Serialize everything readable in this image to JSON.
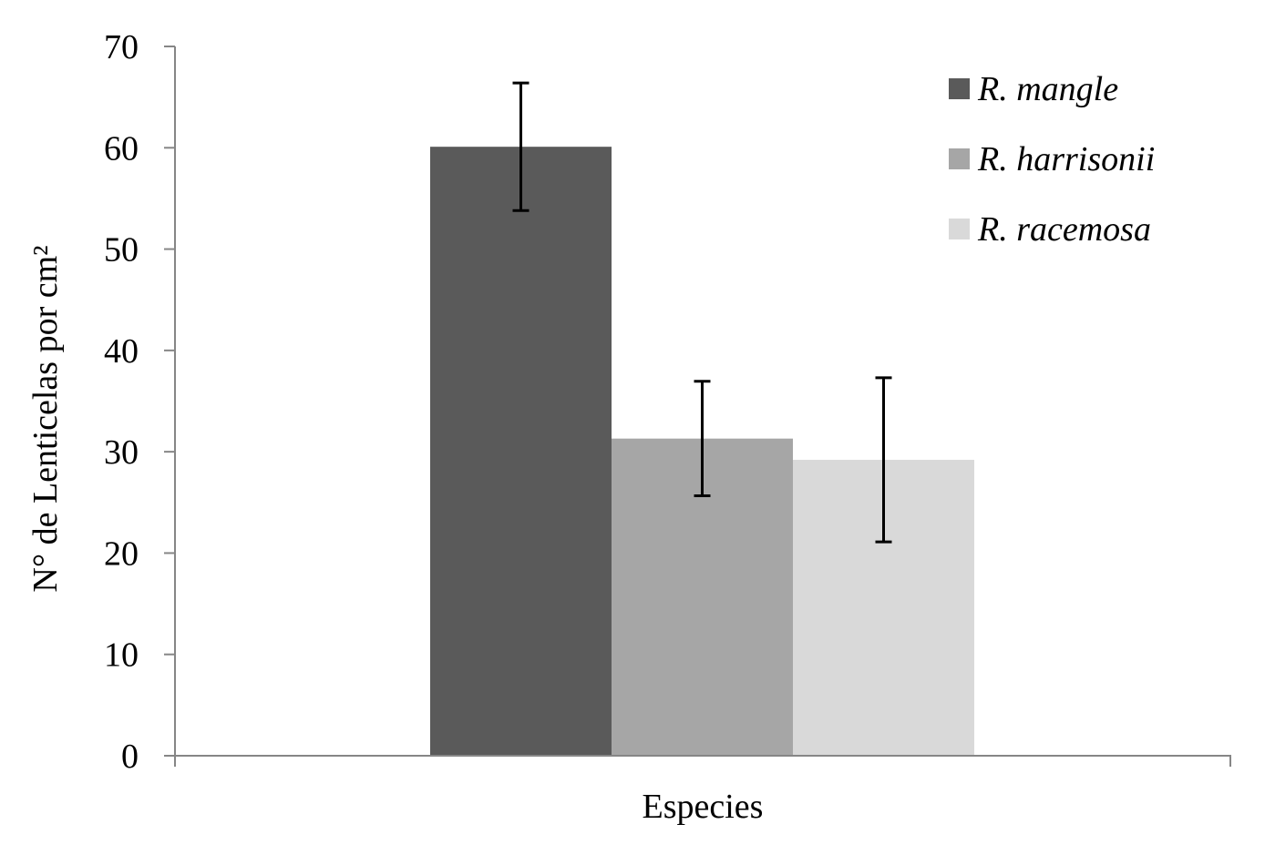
{
  "chart_data": {
    "type": "bar",
    "xlabel": "Especies",
    "ylabel": "N° de Lenticelas por cm²",
    "ylim": [
      0,
      70
    ],
    "yticks": [
      0,
      10,
      20,
      30,
      40,
      50,
      60,
      70
    ],
    "categories": [
      ""
    ],
    "legend_position": "top-right",
    "grid": false,
    "series": [
      {
        "name": "R. mangle",
        "values": [
          60.1
        ],
        "error": [
          6.3
        ],
        "color": "#5a5a5a"
      },
      {
        "name": "R. harrisonii",
        "values": [
          31.3
        ],
        "error": [
          5.65
        ],
        "color": "#a6a6a6"
      },
      {
        "name": "R. racemosa",
        "values": [
          29.2
        ],
        "error": [
          8.1
        ],
        "color": "#d9d9d9"
      }
    ]
  }
}
